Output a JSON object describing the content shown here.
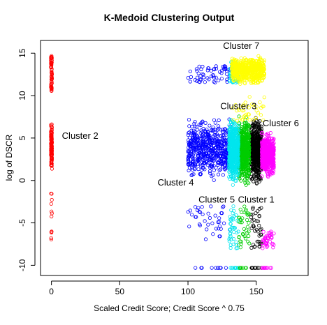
{
  "chart_data": {
    "type": "scatter",
    "title": "K-Medoid Clustering Output",
    "xlabel": "Scaled Credit Score; Credit Score ^ 0.75",
    "ylabel": "log of DSCR",
    "xlim": [
      -8,
      188
    ],
    "ylim": [
      -11.2,
      16.5
    ],
    "x_ticks": [
      0,
      50,
      100,
      150
    ],
    "y_ticks": [
      -10,
      -5,
      0,
      5,
      10,
      15
    ],
    "grid": false,
    "point_marker": "open-circle",
    "clusters": [
      {
        "label": "Cluster 1",
        "color": "#000000",
        "x_range": [
          146,
          154
        ],
        "y_core": [
          -1,
          8
        ],
        "y_sparse": [
          -8,
          -3
        ],
        "y_floor": -10.3
      },
      {
        "label": "Cluster 2",
        "color": "#ff0000",
        "x_range": [
          -1,
          1
        ],
        "y_core": [
          0,
          7.5
        ],
        "y_sparse": [
          -10.3,
          -1.5
        ],
        "y_upper": [
          10.5,
          14.8
        ]
      },
      {
        "label": "Cluster 3",
        "color": "#00cd00",
        "x_range": [
          137,
          145
        ],
        "y_core": [
          -1,
          8
        ],
        "y_sparse": [
          -8,
          -3
        ],
        "y_floor": -10.3
      },
      {
        "label": "Cluster 4",
        "color": "#0000ff",
        "x_range": [
          100,
          131
        ],
        "y_core": [
          -0.5,
          8
        ],
        "y_sparse": [
          -7,
          -3
        ],
        "y_upper": [
          11.5,
          13.5
        ],
        "y_floor": -10.3
      },
      {
        "label": "Cluster 5",
        "color": "#00e5ee",
        "x_range": [
          130,
          137
        ],
        "y_core": [
          -1,
          8
        ],
        "y_sparse": [
          -8,
          -3
        ],
        "y_upper": [
          11.5,
          14
        ],
        "y_floor": -10.3
      },
      {
        "label": "Cluster 6",
        "color": "#ff00ff",
        "x_range": [
          154,
          163
        ],
        "y_core": [
          0,
          6
        ],
        "y_sparse": [
          -8,
          -6
        ],
        "y_floor": -10.3
      },
      {
        "label": "Cluster 7",
        "color": "#ffff00",
        "x_range": [
          132,
          156
        ],
        "y_core": [
          11,
          15
        ],
        "y_sparse": [
          7,
          10
        ]
      }
    ],
    "annotations": [
      {
        "text": "Cluster 7",
        "x": 139,
        "y": 15.5
      },
      {
        "text": "Cluster 3",
        "x": 137,
        "y": 8.4
      },
      {
        "text": "Cluster 6",
        "x": 168,
        "y": 6.4
      },
      {
        "text": "Cluster 2",
        "x": 21,
        "y": 4.9
      },
      {
        "text": "Cluster 4",
        "x": 91,
        "y": -0.6
      },
      {
        "text": "Cluster 5",
        "x": 121,
        "y": -2.6
      },
      {
        "text": "Cluster 1",
        "x": 150,
        "y": -2.6
      }
    ]
  }
}
